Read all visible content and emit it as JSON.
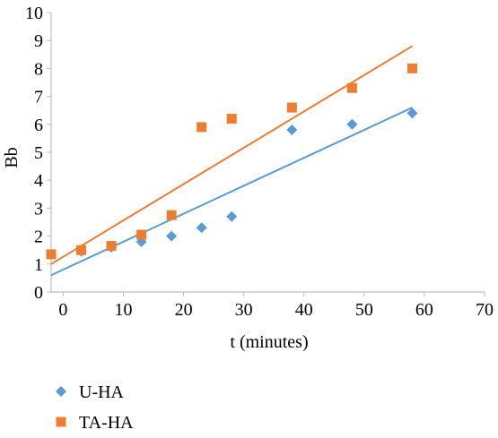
{
  "chart_data": {
    "type": "scatter",
    "title": "",
    "xlabel": "t (minutes)",
    "ylabel": "Bb",
    "xlim": [
      -2,
      70
    ],
    "ylim": [
      0,
      10
    ],
    "xticks": [
      0,
      10,
      20,
      30,
      40,
      50,
      60,
      70
    ],
    "yticks": [
      0,
      1,
      2,
      3,
      4,
      5,
      6,
      7,
      8,
      9,
      10
    ],
    "grid": false,
    "legend_position": "bottom-left",
    "series": [
      {
        "name": "U-HA",
        "marker": "diamond",
        "color": "#5B9BD5",
        "points": [
          [
            -2,
            1.35
          ],
          [
            3,
            1.45
          ],
          [
            8,
            1.6
          ],
          [
            13,
            1.8
          ],
          [
            18,
            2.0
          ],
          [
            23,
            2.3
          ],
          [
            28,
            2.7
          ],
          [
            38,
            5.8
          ],
          [
            48,
            6.0
          ],
          [
            58,
            6.4
          ]
        ],
        "trendline": {
          "x1": -2,
          "y1": 0.6,
          "x2": 58,
          "y2": 6.6
        }
      },
      {
        "name": "TA-HA",
        "marker": "square",
        "color": "#ED7D31",
        "points": [
          [
            -2,
            1.35
          ],
          [
            3,
            1.5
          ],
          [
            8,
            1.65
          ],
          [
            13,
            2.05
          ],
          [
            18,
            2.75
          ],
          [
            23,
            5.9
          ],
          [
            28,
            6.2
          ],
          [
            38,
            6.6
          ],
          [
            48,
            7.3
          ],
          [
            58,
            8.0
          ]
        ],
        "trendline": {
          "x1": -2,
          "y1": 1.0,
          "x2": 58,
          "y2": 8.8
        }
      }
    ]
  }
}
